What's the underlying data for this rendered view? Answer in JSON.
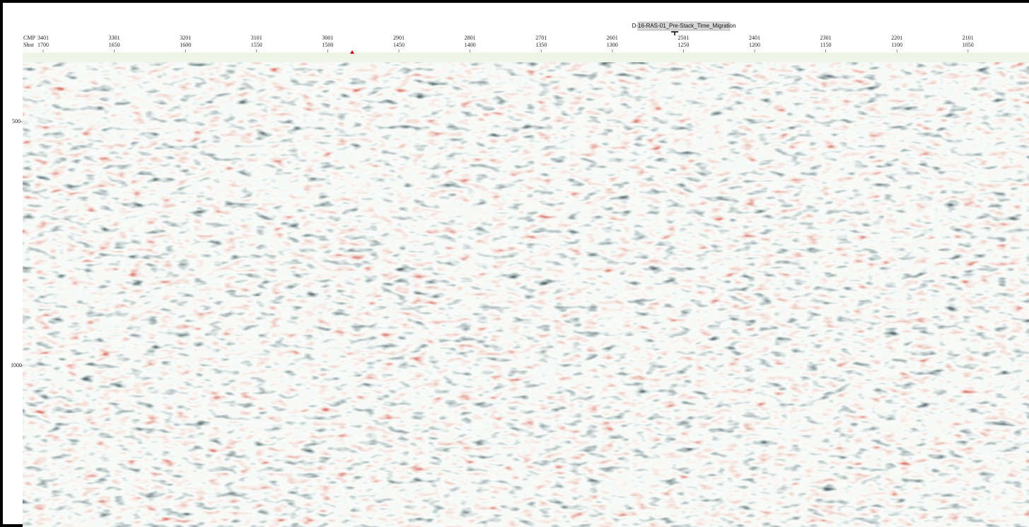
{
  "header": {
    "title": "D-16-RAS-01_Pre-Stack_Time_Migration",
    "row_labels": [
      "CMP",
      "Shot"
    ]
  },
  "columns": [
    {
      "cmp": "3401",
      "shot": "1700"
    },
    {
      "cmp": "3301",
      "shot": "1650"
    },
    {
      "cmp": "3201",
      "shot": "1600"
    },
    {
      "cmp": "3101",
      "shot": "1550"
    },
    {
      "cmp": "3001",
      "shot": "1500"
    },
    {
      "cmp": "2901",
      "shot": "1450"
    },
    {
      "cmp": "2801",
      "shot": "1400"
    },
    {
      "cmp": "2701",
      "shot": "1350"
    },
    {
      "cmp": "2601",
      "shot": "1300"
    },
    {
      "cmp": "2501",
      "shot": "1250"
    },
    {
      "cmp": "2401",
      "shot": "1200"
    },
    {
      "cmp": "2301",
      "shot": "1150"
    },
    {
      "cmp": "2201",
      "shot": "1100"
    },
    {
      "cmp": "2101",
      "shot": "1050"
    }
  ],
  "time_labels": [
    "500",
    "1000"
  ]
}
